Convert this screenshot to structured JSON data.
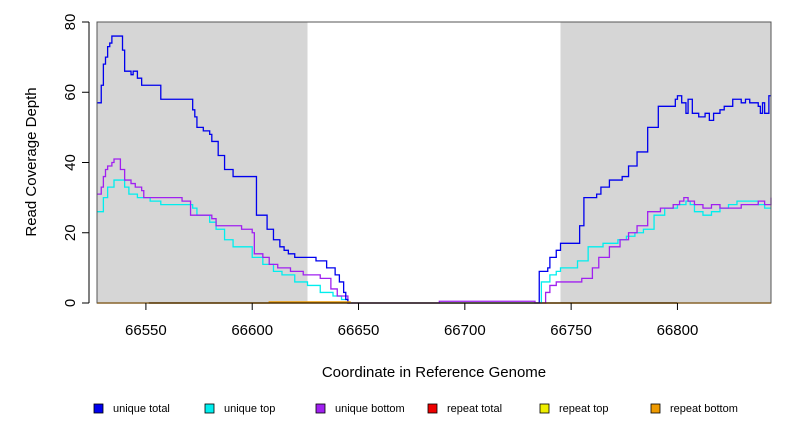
{
  "chart_data": {
    "type": "line",
    "title": "",
    "xlabel": "Coordinate in Reference Genome",
    "ylabel": "Read Coverage Depth",
    "xlim": [
      66527,
      66844
    ],
    "ylim": [
      0,
      80
    ],
    "xticks": [
      66550,
      66600,
      66650,
      66700,
      66750,
      66800
    ],
    "yticks": [
      0,
      20,
      40,
      60,
      80
    ],
    "grid": false,
    "legend_position": "bottom",
    "shaded_regions": [
      {
        "x0": 66527,
        "x1": 66626,
        "color": "#d6d6d6"
      },
      {
        "x0": 66745,
        "x1": 66844,
        "color": "#d6d6d6"
      }
    ],
    "series": [
      {
        "name": "unique total",
        "color": "#0000ee",
        "points": [
          [
            66527,
            57
          ],
          [
            66528,
            57
          ],
          [
            66529,
            62
          ],
          [
            66530,
            68
          ],
          [
            66531,
            70
          ],
          [
            66532,
            73
          ],
          [
            66533,
            74
          ],
          [
            66534,
            76
          ],
          [
            66539,
            72
          ],
          [
            66540,
            66
          ],
          [
            66543,
            65
          ],
          [
            66544,
            66
          ],
          [
            66546,
            64
          ],
          [
            66548,
            62
          ],
          [
            66557,
            58
          ],
          [
            66572,
            55
          ],
          [
            66573,
            53
          ],
          [
            66574,
            50
          ],
          [
            66577,
            49
          ],
          [
            66580,
            48
          ],
          [
            66581,
            46
          ],
          [
            66584,
            42
          ],
          [
            66587,
            38
          ],
          [
            66591,
            36
          ],
          [
            66602,
            25
          ],
          [
            66607,
            21
          ],
          [
            66610,
            18
          ],
          [
            66613,
            16
          ],
          [
            66615,
            15
          ],
          [
            66617,
            14
          ],
          [
            66620,
            13
          ],
          [
            66630,
            12
          ],
          [
            66635,
            10
          ],
          [
            66639,
            8
          ],
          [
            66641,
            6
          ],
          [
            66643,
            3
          ],
          [
            66644,
            1
          ],
          [
            66645,
            0
          ],
          [
            66734,
            0
          ],
          [
            66735,
            9
          ],
          [
            66739,
            10
          ],
          [
            66740,
            13
          ],
          [
            66743,
            15
          ],
          [
            66745,
            17
          ],
          [
            66754,
            22
          ],
          [
            66756,
            30
          ],
          [
            66762,
            31
          ],
          [
            66764,
            33
          ],
          [
            66768,
            35
          ],
          [
            66774,
            36
          ],
          [
            66777,
            39
          ],
          [
            66781,
            43
          ],
          [
            66786,
            50
          ],
          [
            66791,
            56
          ],
          [
            66799,
            58
          ],
          [
            66800,
            59
          ],
          [
            66802,
            57
          ],
          [
            66804,
            54
          ],
          [
            66805,
            58
          ],
          [
            66807,
            54
          ],
          [
            66810,
            53
          ],
          [
            66813,
            54
          ],
          [
            66815,
            52
          ],
          [
            66817,
            54
          ],
          [
            66820,
            55
          ],
          [
            66822,
            56
          ],
          [
            66826,
            58
          ],
          [
            66830,
            57
          ],
          [
            66832,
            58
          ],
          [
            66834,
            57
          ],
          [
            66838,
            56
          ],
          [
            66839,
            54
          ],
          [
            66840,
            57
          ],
          [
            66841,
            54
          ],
          [
            66843,
            59
          ],
          [
            66844,
            59
          ]
        ]
      },
      {
        "name": "unique top",
        "color": "#00eeee",
        "points": [
          [
            66527,
            26
          ],
          [
            66528,
            26
          ],
          [
            66530,
            30
          ],
          [
            66532,
            33
          ],
          [
            66535,
            35
          ],
          [
            66540,
            33
          ],
          [
            66542,
            31
          ],
          [
            66546,
            30
          ],
          [
            66552,
            29
          ],
          [
            66557,
            28
          ],
          [
            66572,
            27
          ],
          [
            66574,
            25
          ],
          [
            66580,
            23
          ],
          [
            66583,
            21
          ],
          [
            66587,
            18
          ],
          [
            66591,
            16
          ],
          [
            66600,
            13
          ],
          [
            66605,
            11
          ],
          [
            66610,
            9
          ],
          [
            66614,
            8
          ],
          [
            66620,
            6
          ],
          [
            66626,
            5
          ],
          [
            66632,
            3
          ],
          [
            66638,
            2
          ],
          [
            66642,
            1
          ],
          [
            66645,
            0
          ],
          [
            66735,
            0
          ],
          [
            66736,
            6
          ],
          [
            66740,
            8
          ],
          [
            66743,
            9
          ],
          [
            66745,
            10
          ],
          [
            66753,
            12
          ],
          [
            66758,
            16
          ],
          [
            66765,
            17
          ],
          [
            66772,
            18
          ],
          [
            66776,
            19
          ],
          [
            66780,
            20
          ],
          [
            66784,
            21
          ],
          [
            66789,
            25
          ],
          [
            66794,
            27
          ],
          [
            66800,
            28
          ],
          [
            66804,
            29
          ],
          [
            66806,
            28
          ],
          [
            66808,
            26
          ],
          [
            66812,
            25
          ],
          [
            66816,
            26
          ],
          [
            66820,
            27
          ],
          [
            66824,
            28
          ],
          [
            66828,
            29
          ],
          [
            66833,
            29
          ],
          [
            66838,
            28
          ],
          [
            66841,
            27
          ],
          [
            66844,
            27
          ]
        ]
      },
      {
        "name": "unique bottom",
        "color": "#a020f0",
        "points": [
          [
            66527,
            31
          ],
          [
            66528,
            31
          ],
          [
            66529,
            33
          ],
          [
            66530,
            36
          ],
          [
            66531,
            38
          ],
          [
            66532,
            39
          ],
          [
            66534,
            40
          ],
          [
            66535,
            41
          ],
          [
            66538,
            38
          ],
          [
            66540,
            35
          ],
          [
            66543,
            34
          ],
          [
            66545,
            33
          ],
          [
            66548,
            32
          ],
          [
            66549,
            30
          ],
          [
            66567,
            29
          ],
          [
            66571,
            25
          ],
          [
            66581,
            24
          ],
          [
            66583,
            22
          ],
          [
            66595,
            21
          ],
          [
            66600,
            20
          ],
          [
            66601,
            14
          ],
          [
            66605,
            13
          ],
          [
            66608,
            11
          ],
          [
            66612,
            10
          ],
          [
            66618,
            9
          ],
          [
            66624,
            8
          ],
          [
            66630,
            8
          ],
          [
            66632,
            7
          ],
          [
            66637,
            4
          ],
          [
            66640,
            2
          ],
          [
            66645,
            0
          ],
          [
            66685,
            0
          ],
          [
            66688,
            0.5
          ],
          [
            66732,
            0.5
          ],
          [
            66733,
            0
          ],
          [
            66737,
            0
          ],
          [
            66738,
            3
          ],
          [
            66740,
            5
          ],
          [
            66743,
            6
          ],
          [
            66755,
            7
          ],
          [
            66760,
            10
          ],
          [
            66763,
            13
          ],
          [
            66768,
            16
          ],
          [
            66773,
            18
          ],
          [
            66777,
            20
          ],
          [
            66781,
            22
          ],
          [
            66786,
            26
          ],
          [
            66792,
            27
          ],
          [
            66798,
            28
          ],
          [
            66801,
            29
          ],
          [
            66803,
            30
          ],
          [
            66805,
            29
          ],
          [
            66808,
            28
          ],
          [
            66812,
            27
          ],
          [
            66816,
            28
          ],
          [
            66820,
            27
          ],
          [
            66824,
            27
          ],
          [
            66830,
            28
          ],
          [
            66835,
            28
          ],
          [
            66838,
            29
          ],
          [
            66841,
            28
          ],
          [
            66844,
            30
          ]
        ]
      },
      {
        "name": "repeat total",
        "color": "#ee0000",
        "points": [
          [
            66527,
            0
          ],
          [
            66844,
            0
          ]
        ]
      },
      {
        "name": "repeat top",
        "color": "#eeee00",
        "points": [
          [
            66527,
            0
          ],
          [
            66844,
            0
          ]
        ]
      },
      {
        "name": "repeat bottom",
        "color": "#ee9a00",
        "points": [
          [
            66527,
            0
          ],
          [
            66607,
            0
          ],
          [
            66608,
            0.3
          ],
          [
            66645,
            0.3
          ],
          [
            66646,
            0
          ],
          [
            66844,
            0
          ]
        ]
      }
    ]
  }
}
